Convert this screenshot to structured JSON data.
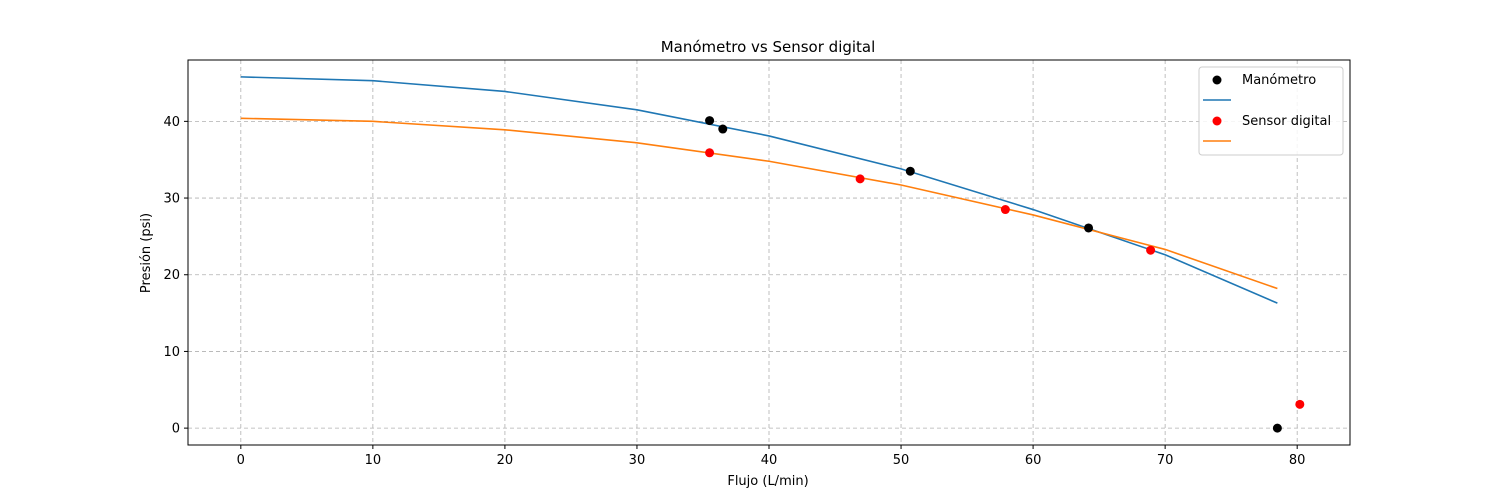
{
  "chart_data": {
    "type": "scatter",
    "title": "Manómetro vs Sensor digital",
    "xlabel": "Flujo (L/min)",
    "ylabel": "Presión (psi)",
    "xlim": [
      -4,
      84
    ],
    "ylim": [
      -2.2,
      48
    ],
    "xticks": [
      0,
      10,
      20,
      30,
      40,
      50,
      60,
      70,
      80
    ],
    "yticks": [
      0,
      10,
      20,
      30,
      40
    ],
    "grid": true,
    "legend_position": "top-right",
    "series": [
      {
        "name": "Manómetro",
        "marker_color": "#000000",
        "line_color": "#1f77b4",
        "points": [
          [
            35.5,
            40.1
          ],
          [
            36.5,
            39.0
          ],
          [
            50.7,
            33.5
          ],
          [
            64.2,
            26.1
          ],
          [
            78.5,
            0.0
          ]
        ],
        "fit_curve": [
          [
            0,
            45.8
          ],
          [
            10,
            45.3
          ],
          [
            20,
            43.9
          ],
          [
            30,
            41.5
          ],
          [
            40,
            38.1
          ],
          [
            50,
            33.8
          ],
          [
            60,
            28.5
          ],
          [
            70,
            22.6
          ],
          [
            78.5,
            16.3
          ]
        ]
      },
      {
        "name": "Sensor digital",
        "marker_color": "#ff0000",
        "line_color": "#ff7f0e",
        "points": [
          [
            35.5,
            35.9
          ],
          [
            46.9,
            32.5
          ],
          [
            57.9,
            28.5
          ],
          [
            68.9,
            23.2
          ],
          [
            80.2,
            3.1
          ]
        ],
        "fit_curve": [
          [
            0,
            40.4
          ],
          [
            10,
            40.0
          ],
          [
            20,
            38.9
          ],
          [
            30,
            37.2
          ],
          [
            40,
            34.8
          ],
          [
            50,
            31.7
          ],
          [
            60,
            27.8
          ],
          [
            70,
            23.3
          ],
          [
            78.5,
            18.2
          ]
        ]
      }
    ]
  }
}
